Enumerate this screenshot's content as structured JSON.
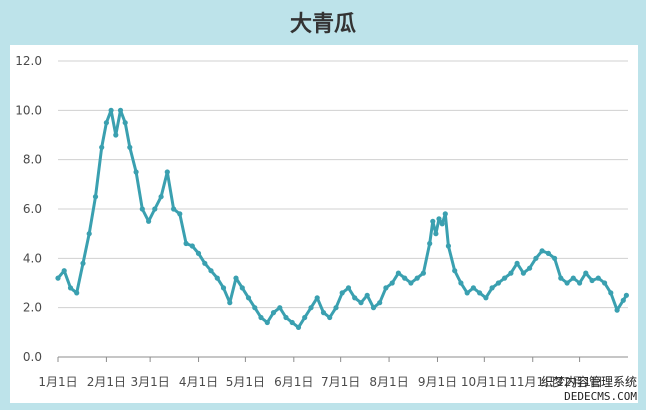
{
  "chart_data": {
    "type": "line",
    "title": "大青瓜",
    "ylim": [
      0,
      12
    ],
    "y_ticks": [
      "0.0",
      "2.0",
      "4.0",
      "6.0",
      "8.0",
      "10.0",
      "12.0"
    ],
    "x_ticks": [
      "1月1日",
      "2月1日",
      "3月1日",
      "4月1日",
      "5月1日",
      "6月1日",
      "7月1日",
      "8月1日",
      "9月1日",
      "10月1日",
      "11月1日",
      "12月1日"
    ],
    "series_color": "#3aa0b0",
    "grid": true,
    "series": [
      {
        "x": [
          0,
          4,
          8,
          12,
          16,
          20,
          24,
          28,
          31,
          34,
          37,
          40,
          43,
          46,
          50,
          54,
          58,
          62,
          66,
          70,
          74,
          78,
          82,
          86,
          90,
          94,
          98,
          102,
          106,
          110,
          114,
          118,
          122,
          126,
          130,
          134,
          138,
          142,
          146,
          150,
          154,
          158,
          162,
          166,
          170,
          174,
          178,
          182,
          186,
          190,
          194,
          198,
          202,
          206,
          210,
          214,
          218,
          222,
          226,
          230,
          234,
          238,
          240,
          242,
          244,
          246,
          248,
          250,
          254,
          258,
          262,
          266,
          270,
          274,
          278,
          282,
          286,
          290,
          294,
          298,
          302,
          306,
          310,
          314,
          318,
          322,
          326,
          330,
          334,
          338,
          342,
          346,
          350,
          354,
          358,
          362,
          364
        ],
        "y": [
          3.2,
          3.5,
          2.8,
          2.6,
          3.8,
          5.0,
          6.5,
          8.5,
          9.5,
          10.0,
          9.0,
          10.0,
          9.5,
          8.5,
          7.5,
          6.0,
          5.5,
          6.0,
          6.5,
          7.5,
          6.0,
          5.8,
          4.6,
          4.5,
          4.2,
          3.8,
          3.5,
          3.2,
          2.8,
          2.2,
          3.2,
          2.8,
          2.4,
          2.0,
          1.6,
          1.4,
          1.8,
          2.0,
          1.6,
          1.4,
          1.2,
          1.6,
          2.0,
          2.4,
          1.8,
          1.6,
          2.0,
          2.6,
          2.8,
          2.4,
          2.2,
          2.5,
          2.0,
          2.2,
          2.8,
          3.0,
          3.4,
          3.2,
          3.0,
          3.2,
          3.4,
          4.6,
          5.5,
          5.0,
          5.6,
          5.4,
          5.8,
          4.5,
          3.5,
          3.0,
          2.6,
          2.8,
          2.6,
          2.4,
          2.8,
          3.0,
          3.2,
          3.4,
          3.8,
          3.4,
          3.6,
          4.0,
          4.3,
          4.2,
          4.0,
          3.2,
          3.0,
          3.2,
          3.0,
          3.4,
          3.1,
          3.2,
          3.0,
          2.6,
          1.9,
          2.3,
          2.5
        ]
      }
    ]
  },
  "watermark": {
    "line1": "织梦内容管理系统",
    "line2": "DEDECMS.COM"
  }
}
